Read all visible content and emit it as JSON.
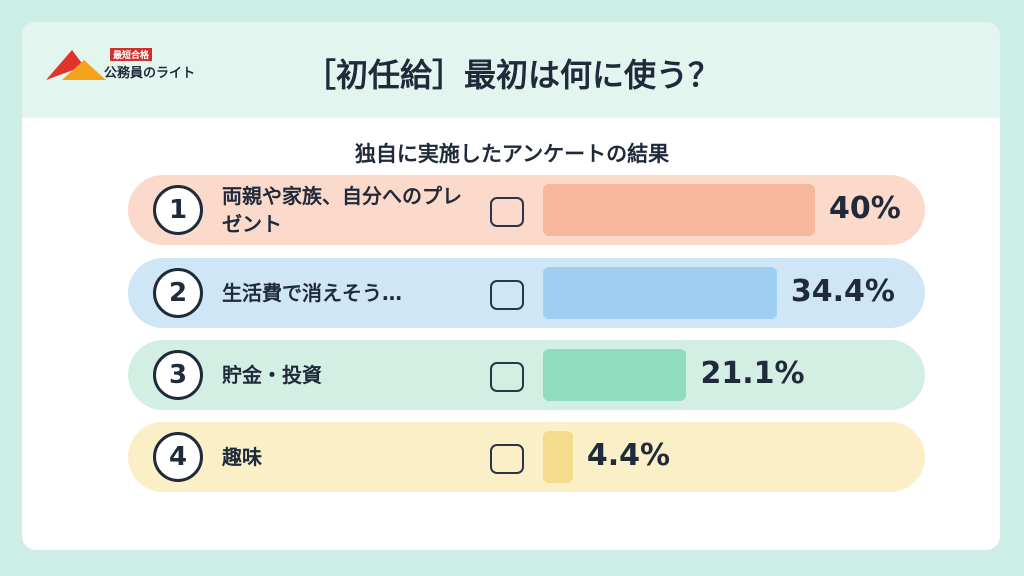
{
  "logo": {
    "badge": "最短合格",
    "name": "公務員のライト"
  },
  "chart_data": {
    "type": "bar",
    "orientation": "horizontal",
    "title": "［初任給］最初は何に使う？",
    "subtitle": "独自に実施したアンケートの結果",
    "ranks": [
      "1",
      "2",
      "3",
      "4"
    ],
    "categories": [
      "両親や家族、自分へのプレゼント",
      "生活費で消えそう…",
      "貯金・投資",
      "趣味"
    ],
    "values": [
      40,
      34.4,
      21.1,
      4.4
    ],
    "value_labels": [
      "40%",
      "34.4%",
      "21.1%",
      "4.4%"
    ],
    "colors": [
      "#f7b79c",
      "#9fcff2",
      "#8fdcbf",
      "#f5dc8c"
    ],
    "row_colors": [
      "#fcdacb",
      "#cfe6f7",
      "#d3efe4",
      "#faefc6"
    ],
    "xlim": [
      0,
      40
    ]
  }
}
